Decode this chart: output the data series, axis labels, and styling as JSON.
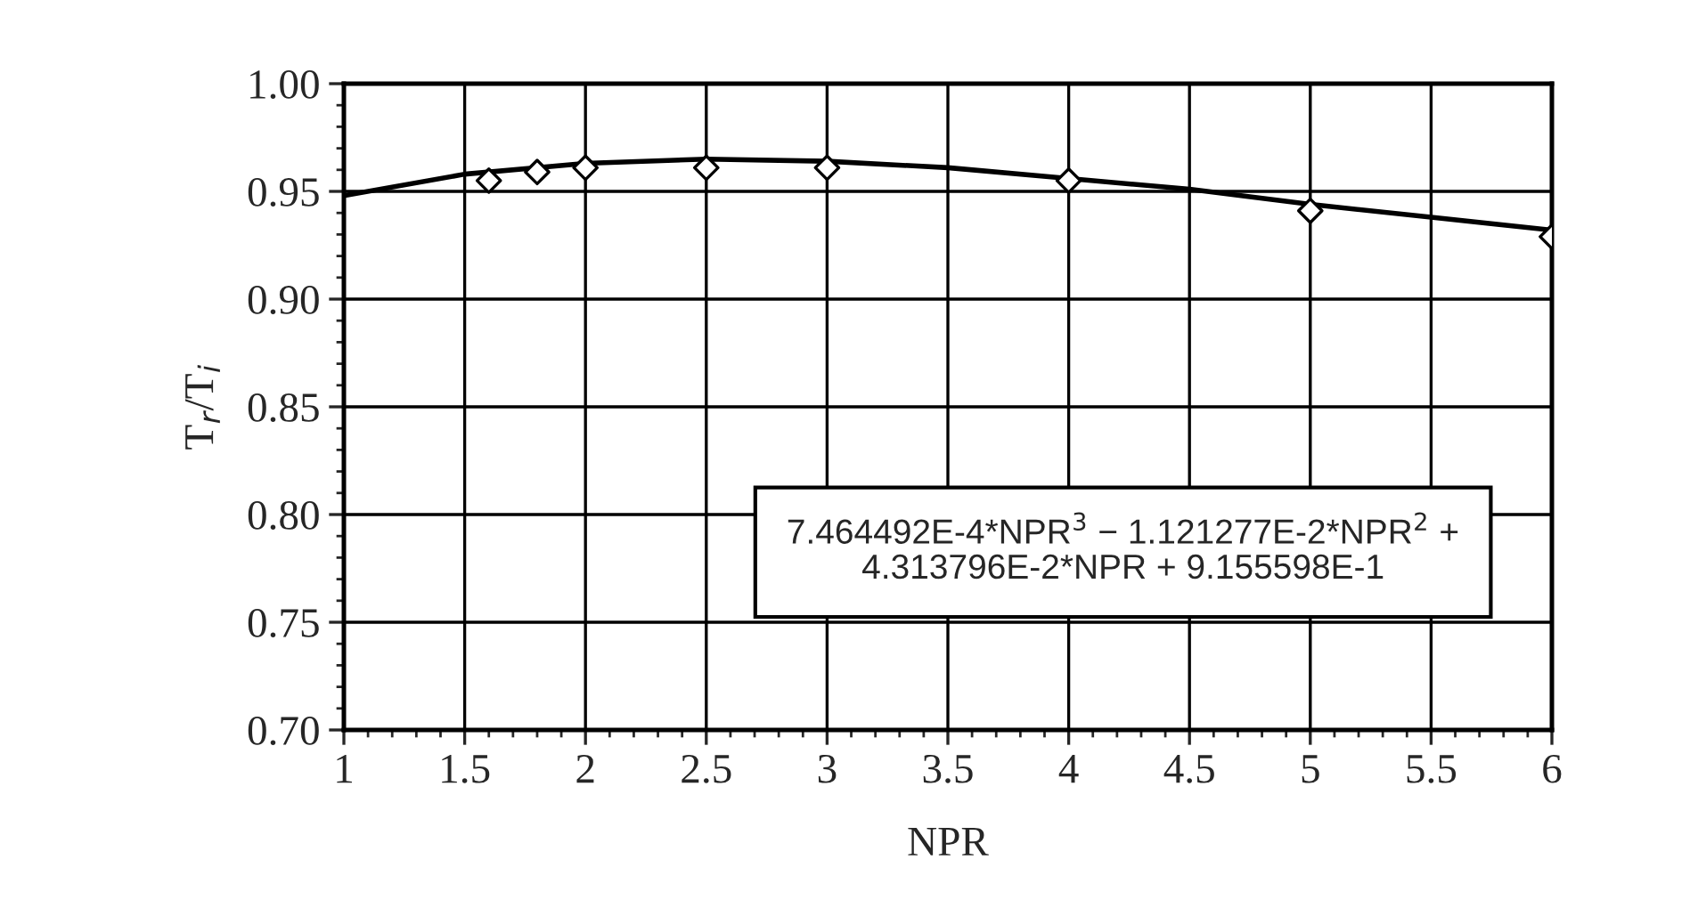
{
  "chart_data": {
    "type": "scatter",
    "xlabel": "NPR",
    "ylabel": "T$_{r}$/T$_{i}$",
    "xlim": [
      1,
      6
    ],
    "xticks": [
      1,
      1.5,
      2,
      2.5,
      3,
      3.5,
      4,
      4.5,
      5,
      5.5,
      6
    ],
    "ylim": [
      0.7,
      1.0
    ],
    "yticks": [
      {
        "value": 0.7,
        "label": "0.70"
      },
      {
        "value": 0.75,
        "label": "0.75"
      },
      {
        "value": 0.8,
        "label": "0.80"
      },
      {
        "value": 0.85,
        "label": "0.85"
      },
      {
        "value": 0.9,
        "label": "0.90"
      },
      {
        "value": 0.95,
        "label": "0.95"
      },
      {
        "value": 1.0,
        "label": "1.00"
      }
    ],
    "grid": true,
    "series": [
      {
        "color": "#000000",
        "marker": "diamond",
        "x": [
          1.6,
          1.8,
          2.0,
          2.5,
          3.0,
          4.0,
          5.0,
          6.0
        ],
        "values": [
          0.955,
          0.959,
          0.961,
          0.961,
          0.961,
          0.955,
          0.941,
          0.929
        ]
      },
      {
        "type": "line",
        "color": "#000000",
        "marker": "none",
        "line_style": "solid",
        "x": [
          1,
          1.5,
          2,
          2.5,
          3,
          3.5,
          4,
          4.5,
          5,
          5.5,
          6
        ],
        "values": [
          0.948,
          0.958,
          0.963,
          0.965,
          0.964,
          0.961,
          0.956,
          0.951,
          0.944,
          0.938,
          0.932
        ]
      }
    ],
    "annotations": [
      "7.464492E-4*NPR$^{3}$ − 1.121277E-2*NPR$^{2}$ +\n4.313796E-2*NPR + 9.155598E-1"
    ]
  }
}
